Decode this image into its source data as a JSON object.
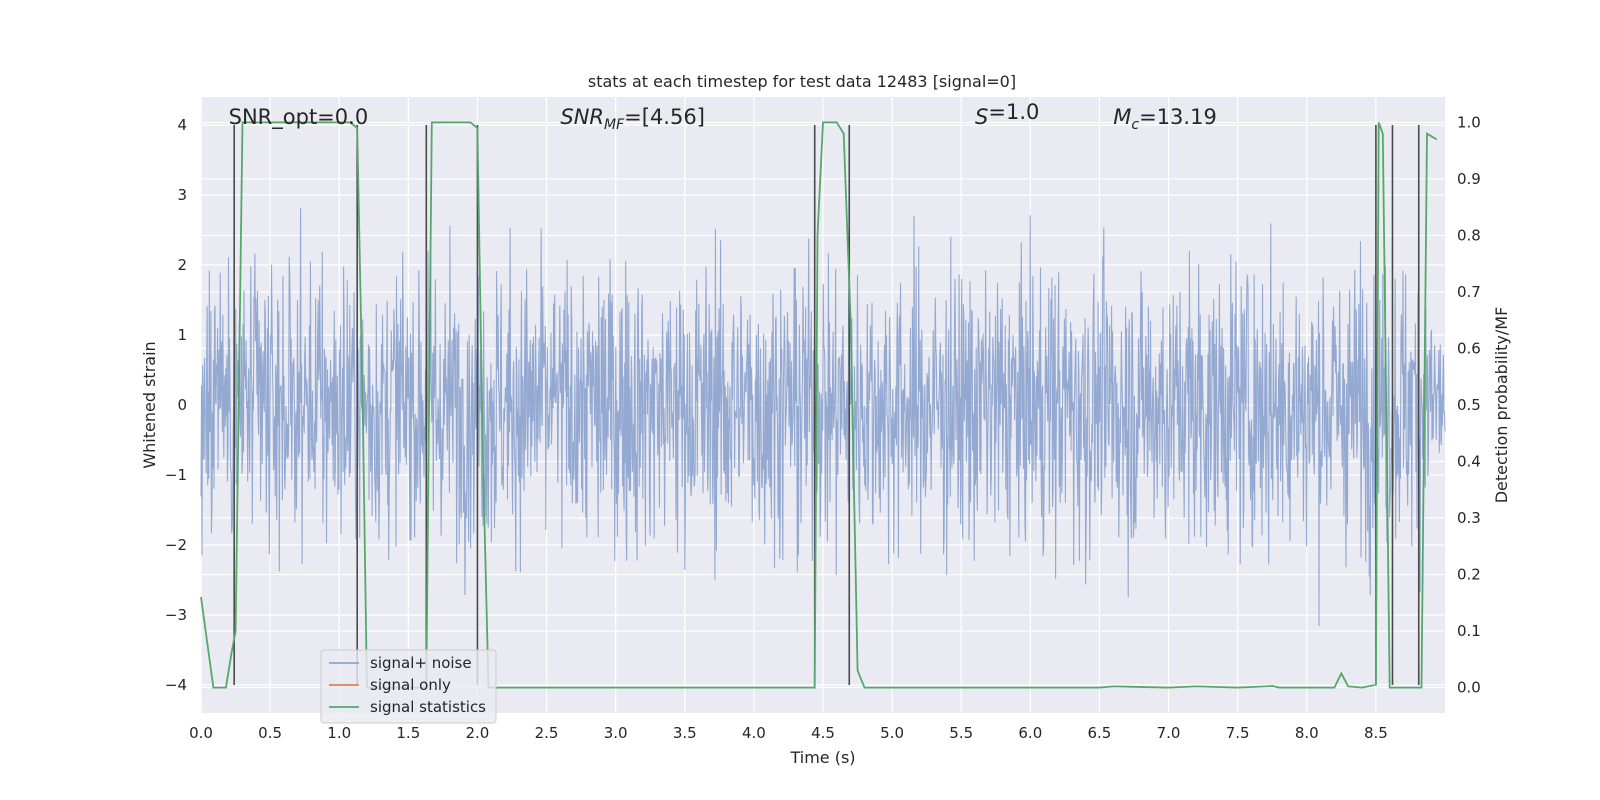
{
  "chart_data": {
    "type": "line",
    "title": "stats at each timestep for test data 12483 [signal=0]",
    "xlabel": "Time (s)",
    "ylabel_left": "Whitened strain",
    "ylabel_right": "Detection probability/MF",
    "xlim": [
      0.0,
      9.0
    ],
    "ylim_left": [
      -4.4,
      4.4
    ],
    "ylim_right": [
      -0.045,
      1.045
    ],
    "x_ticks": [
      "0.0",
      "0.5",
      "1.0",
      "1.5",
      "2.0",
      "2.5",
      "3.0",
      "3.5",
      "4.0",
      "4.5",
      "5.0",
      "5.5",
      "6.0",
      "6.5",
      "7.0",
      "7.5",
      "8.0",
      "8.5"
    ],
    "x_tick_values": [
      0.0,
      0.5,
      1.0,
      1.5,
      2.0,
      2.5,
      3.0,
      3.5,
      4.0,
      4.5,
      5.0,
      5.5,
      6.0,
      6.5,
      7.0,
      7.5,
      8.0,
      8.5
    ],
    "y_left_ticks": [
      "4",
      "3",
      "2",
      "1",
      "0",
      "−1",
      "−2",
      "−3",
      "−4"
    ],
    "y_left_tick_values": [
      4,
      3,
      2,
      1,
      0,
      -1,
      -2,
      -3,
      -4
    ],
    "y_right_ticks": [
      "1.0",
      "0.9",
      "0.8",
      "0.7",
      "0.6",
      "0.5",
      "0.4",
      "0.3",
      "0.2",
      "0.1",
      "0.0"
    ],
    "y_right_tick_values": [
      1.0,
      0.9,
      0.8,
      0.7,
      0.6,
      0.5,
      0.4,
      0.3,
      0.2,
      0.1,
      0.0
    ],
    "grid": true,
    "legend_position": "lower-left",
    "annotations": [
      {
        "text": "SNR_opt=0.0",
        "x": 0.2
      },
      {
        "parts": [
          [
            "SNR",
            "italic"
          ],
          [
            "MF",
            "italic-sub"
          ],
          [
            "=[4.56]",
            "normal"
          ]
        ],
        "x": 2.6
      },
      {
        "parts": [
          [
            "S",
            "italic"
          ],
          [
            "=1.0",
            "normal"
          ]
        ],
        "x": 5.6
      },
      {
        "parts": [
          [
            "M",
            "italic"
          ],
          [
            "c",
            "italic-sub"
          ],
          [
            "=13.19",
            "normal"
          ]
        ],
        "x": 6.6
      }
    ],
    "series": [
      {
        "name": "signal+ noise",
        "axis": "left",
        "color": "#8fa5cf",
        "description": "whitened strain noise, approx within [-4, 4]",
        "amplitude_envelope": 4.0
      },
      {
        "name": "signal only",
        "axis": "left",
        "color": "#dd8452",
        "x": [],
        "y": []
      },
      {
        "name": "signal statistics",
        "axis": "right",
        "color": "#55a868",
        "x": [
          0.0,
          0.09,
          0.18,
          0.22,
          0.25,
          0.3,
          0.4,
          0.5,
          0.6,
          0.7,
          0.8,
          0.9,
          1.0,
          1.08,
          1.13,
          1.17,
          1.2,
          1.3,
          1.4,
          1.5,
          1.6,
          1.63,
          1.67,
          1.7,
          1.8,
          1.9,
          1.95,
          2.0,
          2.04,
          2.08,
          2.2,
          2.5,
          3.0,
          3.5,
          4.0,
          4.4,
          4.44,
          4.46,
          4.5,
          4.6,
          4.65,
          4.7,
          4.75,
          4.8,
          4.9,
          5.5,
          6.0,
          6.5,
          6.6,
          7.0,
          7.2,
          7.5,
          7.7,
          7.75,
          7.8,
          8.0,
          8.2,
          8.25,
          8.3,
          8.4,
          8.5,
          8.52,
          8.55,
          8.6,
          8.65,
          8.7,
          8.8,
          8.83,
          8.87,
          8.94
        ],
        "y": [
          0.16,
          0.0,
          0.0,
          0.06,
          0.1,
          1.0,
          1.0,
          1.0,
          1.0,
          1.0,
          1.0,
          1.0,
          1.0,
          1.0,
          0.99,
          0.5,
          0.0,
          0.0,
          0.0,
          0.0,
          0.0,
          0.0,
          1.0,
          1.0,
          1.0,
          1.0,
          1.0,
          0.99,
          0.4,
          0.0,
          0.0,
          0.0,
          0.0,
          0.0,
          0.0,
          0.0,
          0.0,
          0.8,
          1.0,
          1.0,
          0.98,
          0.65,
          0.03,
          0.0,
          0.0,
          0.0,
          0.0,
          0.0,
          0.002,
          0.0,
          0.002,
          0.0,
          0.002,
          0.003,
          0.0,
          0.0,
          0.0,
          0.025,
          0.002,
          0.0,
          0.005,
          1.0,
          0.98,
          0.0,
          0.0,
          0.0,
          0.0,
          0.0,
          0.98,
          0.97
        ]
      }
    ],
    "vertical_lines": {
      "color": "#4a4a4a",
      "x": [
        0.24,
        1.13,
        1.63,
        2.0,
        4.44,
        4.69,
        8.5,
        8.62,
        8.81
      ]
    }
  }
}
